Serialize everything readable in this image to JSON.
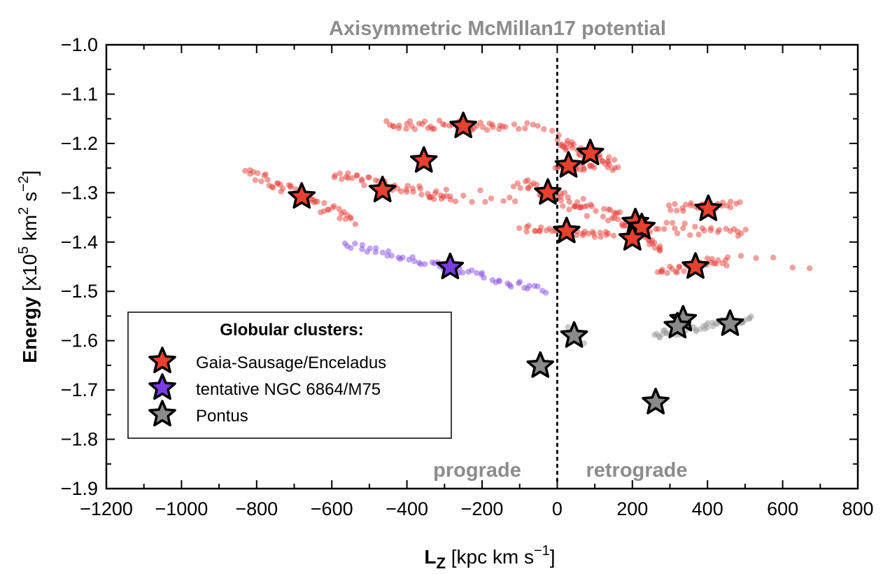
{
  "chart_data": {
    "type": "scatter",
    "title": "Axisymmetric McMillan17 potential",
    "xlabel_main": "L",
    "xlabel_sub": "Z",
    "xlabel_rest": " [kpc km s",
    "xlabel_sup": "−1",
    "xlabel_end": "]",
    "ylabel_main": "Energy",
    "ylabel_rest": " [x10",
    "ylabel_sup1": "5",
    "ylabel_mid": " km",
    "ylabel_sup2": "2",
    "ylabel_mid2": " s",
    "ylabel_sup3": "−2",
    "ylabel_end": "]",
    "xlim": [
      -1200,
      800
    ],
    "ylim": [
      -1.9,
      -1.0
    ],
    "x_ticks": [
      -1200,
      -1000,
      -800,
      -600,
      -400,
      -200,
      0,
      200,
      400,
      600,
      800
    ],
    "x_tick_labels": [
      "−1200",
      "−1000",
      "−800",
      "−600",
      "−400",
      "−200",
      "0",
      "200",
      "400",
      "600",
      "800"
    ],
    "y_ticks": [
      -1.0,
      -1.1,
      -1.2,
      -1.3,
      -1.4,
      -1.5,
      -1.6,
      -1.7,
      -1.8,
      -1.9
    ],
    "y_tick_labels": [
      "−1.0",
      "−1.1",
      "−1.2",
      "−1.3",
      "−1.4",
      "−1.5",
      "−1.6",
      "−1.7",
      "−1.8",
      "−1.9"
    ],
    "vline_x": 0,
    "region_labels": {
      "left": "prograde",
      "right": "retrograde"
    },
    "legend": {
      "title": "Globular clusters:",
      "entries": [
        {
          "label": "Gaia-Sausage/Enceladus",
          "color": "#e8402e"
        },
        {
          "label": "tentative NGC 6864/M75",
          "color": "#7a3ce0"
        },
        {
          "label": "Pontus",
          "color": "#8a8a8a"
        }
      ],
      "placement": "lower-left"
    },
    "colors": {
      "gse": "#e8402e",
      "gse_cloud": "#e8403a",
      "m75": "#7a3ce0",
      "m75_cloud": "#8a4de8",
      "pontus": "#8a8a8a",
      "pontus_cloud": "#9a9a9a",
      "title_gray": "#8c8c8c"
    },
    "series": [
      {
        "group": "gse",
        "stars": [
          [
            -250,
            -1.165
          ],
          [
            -355,
            -1.235
          ],
          [
            -680,
            -1.308
          ],
          [
            -465,
            -1.295
          ],
          [
            88,
            -1.22
          ],
          [
            30,
            -1.245
          ],
          [
            -25,
            -1.3
          ],
          [
            25,
            -1.378
          ],
          [
            208,
            -1.36
          ],
          [
            225,
            -1.37
          ],
          [
            200,
            -1.393
          ],
          [
            402,
            -1.333
          ],
          [
            368,
            -1.45
          ]
        ],
        "clouds": [
          {
            "x0": -455,
            "x1": -150,
            "y0": -1.163,
            "y1": -1.163,
            "n": 40,
            "spread": 0.01
          },
          {
            "x0": -150,
            "x1": -20,
            "y0": -1.162,
            "y1": -1.168,
            "n": 10,
            "spread": 0.007
          },
          {
            "x0": -825,
            "x1": -540,
            "y0": -1.255,
            "y1": -1.36,
            "n": 50,
            "spread": 0.012
          },
          {
            "x0": -595,
            "x1": -280,
            "y0": -1.262,
            "y1": -1.31,
            "n": 45,
            "spread": 0.01
          },
          {
            "x0": -330,
            "x1": -110,
            "y0": -1.3,
            "y1": -1.31,
            "n": 12,
            "spread": 0.015
          },
          {
            "x0": 0,
            "x1": 160,
            "y0": -1.195,
            "y1": -1.245,
            "n": 45,
            "spread": 0.012
          },
          {
            "x0": -10,
            "x1": 100,
            "y0": -1.245,
            "y1": -1.25,
            "n": 20,
            "spread": 0.006
          },
          {
            "x0": -110,
            "x1": 80,
            "y0": -1.28,
            "y1": -1.325,
            "n": 30,
            "spread": 0.012
          },
          {
            "x0": -95,
            "x1": 150,
            "y0": -1.372,
            "y1": -1.385,
            "n": 35,
            "spread": 0.008
          },
          {
            "x0": 10,
            "x1": 160,
            "y0": -1.32,
            "y1": -1.35,
            "n": 15,
            "spread": 0.015
          },
          {
            "x0": 140,
            "x1": 280,
            "y0": -1.34,
            "y1": -1.41,
            "n": 35,
            "spread": 0.012
          },
          {
            "x0": 210,
            "x1": 505,
            "y0": -1.37,
            "y1": -1.378,
            "n": 30,
            "spread": 0.012
          },
          {
            "x0": 300,
            "x1": 480,
            "y0": -1.33,
            "y1": -1.325,
            "n": 25,
            "spread": 0.008
          },
          {
            "x0": 265,
            "x1": 450,
            "y0": -1.46,
            "y1": -1.435,
            "n": 30,
            "spread": 0.01
          },
          {
            "x0": 450,
            "x1": 665,
            "y0": -1.435,
            "y1": -1.45,
            "n": 6,
            "spread": 0.015
          }
        ]
      },
      {
        "group": "m75",
        "stars": [
          [
            -285,
            -1.451
          ]
        ],
        "clouds": [
          {
            "x0": -565,
            "x1": -30,
            "y0": -1.403,
            "y1": -1.5,
            "n": 55,
            "spread": 0.007
          }
        ]
      },
      {
        "group": "pontus",
        "stars": [
          [
            45,
            -1.59
          ],
          [
            -45,
            -1.651
          ],
          [
            335,
            -1.557
          ],
          [
            320,
            -1.571
          ],
          [
            460,
            -1.566
          ],
          [
            262,
            -1.725
          ]
        ],
        "clouds": [
          {
            "x0": 255,
            "x1": 520,
            "y0": -1.59,
            "y1": -1.555,
            "n": 50,
            "spread": 0.008
          },
          {
            "x0": 28,
            "x1": 65,
            "y0": -1.575,
            "y1": -1.6,
            "n": 6,
            "spread": 0.008
          }
        ]
      }
    ]
  }
}
